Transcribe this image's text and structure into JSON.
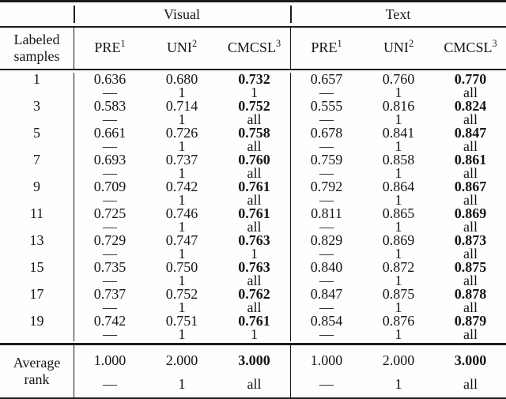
{
  "colors": {
    "ink": "#1c1c1c",
    "paper": "#fefefe"
  },
  "table": {
    "group_headers": {
      "visual": "Visual",
      "text": "Text"
    },
    "row_header": {
      "line1": "Labeled",
      "line2": "samples"
    },
    "methods": [
      {
        "name": "PRE",
        "sup": "1"
      },
      {
        "name": "UNI",
        "sup": "2"
      },
      {
        "name": "CMCSL",
        "sup": "3"
      }
    ],
    "rows": [
      {
        "samples": "1",
        "visual": [
          {
            "v": "0.636",
            "s": "—"
          },
          {
            "v": "0.680",
            "s": "1"
          },
          {
            "v": "0.732",
            "s": "1"
          }
        ],
        "text": [
          {
            "v": "0.657",
            "s": "—"
          },
          {
            "v": "0.760",
            "s": "1"
          },
          {
            "v": "0.770",
            "s": "all"
          }
        ]
      },
      {
        "samples": "3",
        "visual": [
          {
            "v": "0.583",
            "s": "—"
          },
          {
            "v": "0.714",
            "s": "1"
          },
          {
            "v": "0.752",
            "s": "all"
          }
        ],
        "text": [
          {
            "v": "0.555",
            "s": "—"
          },
          {
            "v": "0.816",
            "s": "1"
          },
          {
            "v": "0.824",
            "s": "all"
          }
        ]
      },
      {
        "samples": "5",
        "visual": [
          {
            "v": "0.661",
            "s": "—"
          },
          {
            "v": "0.726",
            "s": "1"
          },
          {
            "v": "0.758",
            "s": "all"
          }
        ],
        "text": [
          {
            "v": "0.678",
            "s": "—"
          },
          {
            "v": "0.841",
            "s": "1"
          },
          {
            "v": "0.847",
            "s": "all"
          }
        ]
      },
      {
        "samples": "7",
        "visual": [
          {
            "v": "0.693",
            "s": "—"
          },
          {
            "v": "0.737",
            "s": "1"
          },
          {
            "v": "0.760",
            "s": "all"
          }
        ],
        "text": [
          {
            "v": "0.759",
            "s": "—"
          },
          {
            "v": "0.858",
            "s": "1"
          },
          {
            "v": "0.861",
            "s": "all"
          }
        ]
      },
      {
        "samples": "9",
        "visual": [
          {
            "v": "0.709",
            "s": "—"
          },
          {
            "v": "0.742",
            "s": "1"
          },
          {
            "v": "0.761",
            "s": "all"
          }
        ],
        "text": [
          {
            "v": "0.792",
            "s": "—"
          },
          {
            "v": "0.864",
            "s": "1"
          },
          {
            "v": "0.867",
            "s": "all"
          }
        ]
      },
      {
        "samples": "11",
        "visual": [
          {
            "v": "0.725",
            "s": "—"
          },
          {
            "v": "0.746",
            "s": "1"
          },
          {
            "v": "0.761",
            "s": "all"
          }
        ],
        "text": [
          {
            "v": "0.811",
            "s": "—"
          },
          {
            "v": "0.865",
            "s": "1"
          },
          {
            "v": "0.869",
            "s": "all"
          }
        ]
      },
      {
        "samples": "13",
        "visual": [
          {
            "v": "0.729",
            "s": "—"
          },
          {
            "v": "0.747",
            "s": "1"
          },
          {
            "v": "0.763",
            "s": "1"
          }
        ],
        "text": [
          {
            "v": "0.829",
            "s": "—"
          },
          {
            "v": "0.869",
            "s": "1"
          },
          {
            "v": "0.873",
            "s": "all"
          }
        ]
      },
      {
        "samples": "15",
        "visual": [
          {
            "v": "0.735",
            "s": "—"
          },
          {
            "v": "0.750",
            "s": "1"
          },
          {
            "v": "0.763",
            "s": "all"
          }
        ],
        "text": [
          {
            "v": "0.840",
            "s": "—"
          },
          {
            "v": "0.872",
            "s": "1"
          },
          {
            "v": "0.875",
            "s": "all"
          }
        ]
      },
      {
        "samples": "17",
        "visual": [
          {
            "v": "0.737",
            "s": "—"
          },
          {
            "v": "0.752",
            "s": "1"
          },
          {
            "v": "0.762",
            "s": "all"
          }
        ],
        "text": [
          {
            "v": "0.847",
            "s": "—"
          },
          {
            "v": "0.875",
            "s": "1"
          },
          {
            "v": "0.878",
            "s": "all"
          }
        ]
      },
      {
        "samples": "19",
        "visual": [
          {
            "v": "0.742",
            "s": "—"
          },
          {
            "v": "0.751",
            "s": "1"
          },
          {
            "v": "0.761",
            "s": "1"
          }
        ],
        "text": [
          {
            "v": "0.854",
            "s": "—"
          },
          {
            "v": "0.876",
            "s": "1"
          },
          {
            "v": "0.879",
            "s": "all"
          }
        ]
      }
    ],
    "footer": {
      "label_line1": "Average",
      "label_line2": "rank",
      "visual": [
        {
          "v": "1.000",
          "s": "—"
        },
        {
          "v": "2.000",
          "s": "1"
        },
        {
          "v": "3.000",
          "s": "all"
        }
      ],
      "text": [
        {
          "v": "1.000",
          "s": "—"
        },
        {
          "v": "2.000",
          "s": "1"
        },
        {
          "v": "3.000",
          "s": "all"
        }
      ]
    }
  }
}
